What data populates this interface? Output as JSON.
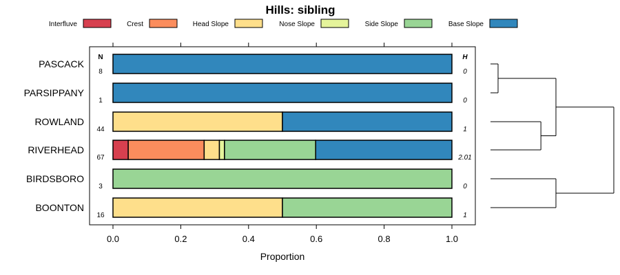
{
  "chart_data": {
    "type": "bar",
    "orientation": "horizontal",
    "stacked": true,
    "title": "Hills: sibling",
    "xlabel": "Proportion",
    "ylabel": "",
    "xlim": [
      0,
      1
    ],
    "x_ticks": [
      "0.0",
      "0.2",
      "0.4",
      "0.6",
      "0.8",
      "1.0"
    ],
    "x_tick_values": [
      0,
      0.2,
      0.4,
      0.6,
      0.8,
      1.0
    ],
    "n_header": "N",
    "h_header": "H",
    "legend_position": "top",
    "legend": [
      {
        "name": "Interfluve",
        "color": "#d7404f"
      },
      {
        "name": "Crest",
        "color": "#fb8d5d"
      },
      {
        "name": "Head Slope",
        "color": "#fedf8b"
      },
      {
        "name": "Nose Slope",
        "color": "#e5f49b"
      },
      {
        "name": "Side Slope",
        "color": "#99d595"
      },
      {
        "name": "Base Slope",
        "color": "#3187bc"
      }
    ],
    "categories": [
      "PASCACK",
      "PARSIPPANY",
      "ROWLAND",
      "RIVERHEAD",
      "BIRDSBORO",
      "BOONTON"
    ],
    "n_values": [
      "8",
      "1",
      "44",
      "67",
      "3",
      "16"
    ],
    "h_values": [
      "0",
      "0",
      "1",
      "2.01",
      "0",
      "1"
    ],
    "series": [
      {
        "name": "Interfluve",
        "values": [
          0,
          0,
          0,
          0.045,
          0,
          0
        ]
      },
      {
        "name": "Crest",
        "values": [
          0,
          0,
          0,
          0.224,
          0,
          0
        ]
      },
      {
        "name": "Head Slope",
        "values": [
          0,
          0,
          0.5,
          0.045,
          0,
          0.5
        ]
      },
      {
        "name": "Nose Slope",
        "values": [
          0,
          0,
          0,
          0.015,
          0,
          0
        ]
      },
      {
        "name": "Side Slope",
        "values": [
          0,
          0,
          0,
          0.269,
          1,
          0.5
        ]
      },
      {
        "name": "Base Slope",
        "values": [
          1,
          1,
          0.5,
          0.402,
          0,
          0
        ]
      }
    ],
    "dendrogram": {
      "type": "hierarchical clustering",
      "leaf_order": [
        "PASCACK",
        "PARSIPPANY",
        "ROWLAND",
        "RIVERHEAD",
        "BIRDSBORO",
        "BOONTON"
      ],
      "merges": [
        {
          "a": "PASCACK",
          "b": "PARSIPPANY",
          "height": 0.0
        },
        {
          "a": "ROWLAND",
          "b": "RIVERHEAD",
          "height": 0.37
        },
        {
          "a": "BIRDSBORO",
          "b": "BOONTON",
          "height": 0.5
        },
        {
          "a": "PASCACK+PARSIPPANY",
          "b": "ROWLAND+RIVERHEAD",
          "height": 0.5
        },
        {
          "a": "PASCACK+PARSIPPANY+ROWLAND+RIVERHEAD",
          "b": "BIRDSBORO+BOONTON",
          "height": 1.0
        }
      ]
    }
  }
}
